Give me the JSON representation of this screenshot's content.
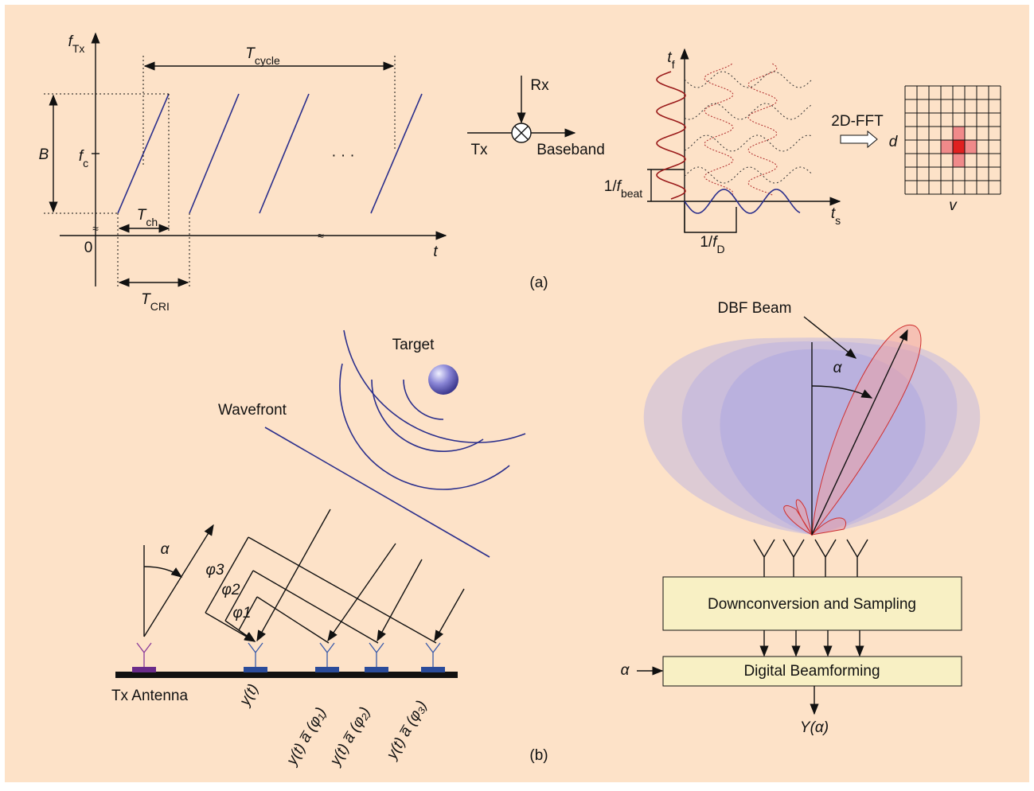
{
  "panel_a": {
    "label": "(a)",
    "chirp": {
      "y_axis": {
        "main": "f",
        "sub": "Tx"
      },
      "cycle": {
        "main": "T",
        "sub": "cycle"
      },
      "bandwidth": "B",
      "center": {
        "main": "f",
        "sub": "c"
      },
      "ellipsis": "· · ·",
      "chirp_time": {
        "main": "T",
        "sub": "ch"
      },
      "origin": "0",
      "x_axis": "t",
      "cri": {
        "main": "T",
        "sub": "CRI"
      },
      "break_y": "≈",
      "break_x": "≈"
    },
    "mixer": {
      "rx": "Rx",
      "tx": "Tx",
      "out": "Baseband"
    },
    "samples": {
      "fast_time": {
        "main": "t",
        "sub": "f"
      },
      "beat": {
        "prefix": "1/",
        "main": "f",
        "sub": "beat"
      },
      "slow_time": {
        "main": "t",
        "sub": "s"
      },
      "doppler": {
        "prefix": "1/",
        "main": "f",
        "sub": "D"
      }
    },
    "fft": {
      "label": "2D-FFT",
      "range": "d",
      "velocity": "v"
    }
  },
  "panel_b": {
    "label": "(b)",
    "array": {
      "target": "Target",
      "wavefront": "Wavefront",
      "angle": "α",
      "phases": [
        "φ3",
        "φ2",
        "φ1"
      ],
      "tx_antenna": "Tx Antenna",
      "signals": [
        "y(t)",
        "y(t) a̅ (φ₁)",
        "y(t) a̅ (φ₂)",
        "y(t) a̅ (φ₃)"
      ]
    },
    "dbf": {
      "beam": "DBF Beam",
      "angle": "α",
      "downconversion": "Downconversion and Sampling",
      "beamforming": "Digital Beamforming",
      "input": "α",
      "output": "Y(α)"
    }
  }
}
